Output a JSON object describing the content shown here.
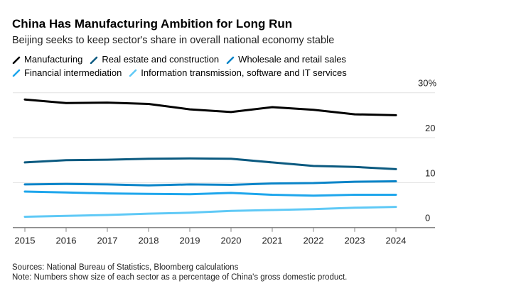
{
  "title": "China Has Manufacturing Ambition for Long Run",
  "subtitle": "Beijing seeks to keep sector's share in overall national economy stable",
  "footer": {
    "sources": "Sources: National Bureau of Statistics, Bloomberg calculations",
    "note": "Note: Numbers show size of each sector as a percentage of China's gross domestic product."
  },
  "chart_data": {
    "type": "line",
    "title": "China Has Manufacturing Ambition for Long Run",
    "subtitle": "Beijing seeks to keep sector's share in overall national economy stable",
    "x": [
      "2015",
      "2016",
      "2017",
      "2018",
      "2019",
      "2020",
      "2021",
      "2022",
      "2023",
      "2024"
    ],
    "ylim": [
      0,
      30
    ],
    "yticks": [
      0,
      10,
      20,
      30
    ],
    "ytick_labels": [
      "0",
      "10",
      "20",
      "30%"
    ],
    "y_axis_position": "right",
    "grid": true,
    "legend": "top-left",
    "series": [
      {
        "name": "Manufacturing",
        "color": "#000000",
        "values": [
          28.5,
          27.7,
          27.8,
          27.5,
          26.3,
          25.7,
          26.8,
          26.2,
          25.2,
          25.0
        ]
      },
      {
        "name": "Real estate and construction",
        "color": "#0b5a80",
        "values": [
          14.5,
          15.0,
          15.1,
          15.3,
          15.4,
          15.3,
          14.5,
          13.7,
          13.5,
          13.0
        ]
      },
      {
        "name": "Wholesale and retail sales",
        "color": "#0a84c8",
        "values": [
          9.6,
          9.7,
          9.6,
          9.4,
          9.6,
          9.5,
          9.8,
          9.9,
          10.2,
          10.3
        ]
      },
      {
        "name": "Financial intermediation",
        "color": "#1ea6ec",
        "values": [
          8.0,
          7.8,
          7.6,
          7.5,
          7.4,
          7.7,
          7.3,
          7.1,
          7.3,
          7.3
        ]
      },
      {
        "name": "Information transmission, software and IT services",
        "color": "#5fc9f6",
        "values": [
          2.4,
          2.6,
          2.8,
          3.1,
          3.3,
          3.7,
          3.9,
          4.1,
          4.4,
          4.6
        ]
      }
    ]
  }
}
